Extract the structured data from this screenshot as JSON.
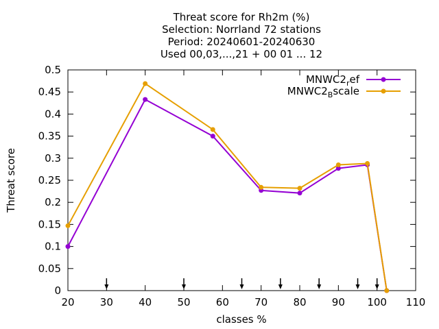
{
  "chart_data": {
    "type": "line",
    "title_lines": [
      "Threat score  for Rh2m (%)",
      "Selection: Norrland      72 stations",
      "Period: 20240601-20240630",
      "Used 00,03,...,21 + 00 01 ... 12"
    ],
    "xlabel": "classes %",
    "ylabel": "Threat score",
    "xlim": [
      20,
      110
    ],
    "ylim": [
      0,
      0.5
    ],
    "xticks": [
      20,
      30,
      40,
      50,
      60,
      70,
      80,
      90,
      100,
      110
    ],
    "yticks": [
      0,
      0.05,
      0.1,
      0.15,
      0.2,
      0.25,
      0.3,
      0.35,
      0.4,
      0.45,
      0.5
    ],
    "ytick_labels": [
      "0",
      "0.05",
      "0.1",
      "0.15",
      "0.2",
      "0.25",
      "0.3",
      "0.35",
      "0.4",
      "0.45",
      "0.5"
    ],
    "arrows_x": [
      30,
      50,
      65,
      75,
      85,
      95,
      100
    ],
    "legend_position": "top-right",
    "grid": false,
    "series": [
      {
        "name_base": "MNWC2",
        "name_sub": "r",
        "name_tail": "ef",
        "color": "#9400d3",
        "x": [
          20,
          40,
          57.5,
          70,
          80,
          90,
          97.5,
          102.5
        ],
        "y": [
          0.1,
          0.433,
          0.35,
          0.227,
          0.221,
          0.277,
          0.285,
          0.0
        ]
      },
      {
        "name_base": "MNWC2",
        "name_sub": "B",
        "name_tail": "scale",
        "color": "#e69f00",
        "x": [
          20,
          40,
          57.5,
          70,
          80,
          90,
          97.5,
          102.5
        ],
        "y": [
          0.147,
          0.469,
          0.365,
          0.234,
          0.232,
          0.285,
          0.288,
          0.0
        ]
      }
    ]
  }
}
